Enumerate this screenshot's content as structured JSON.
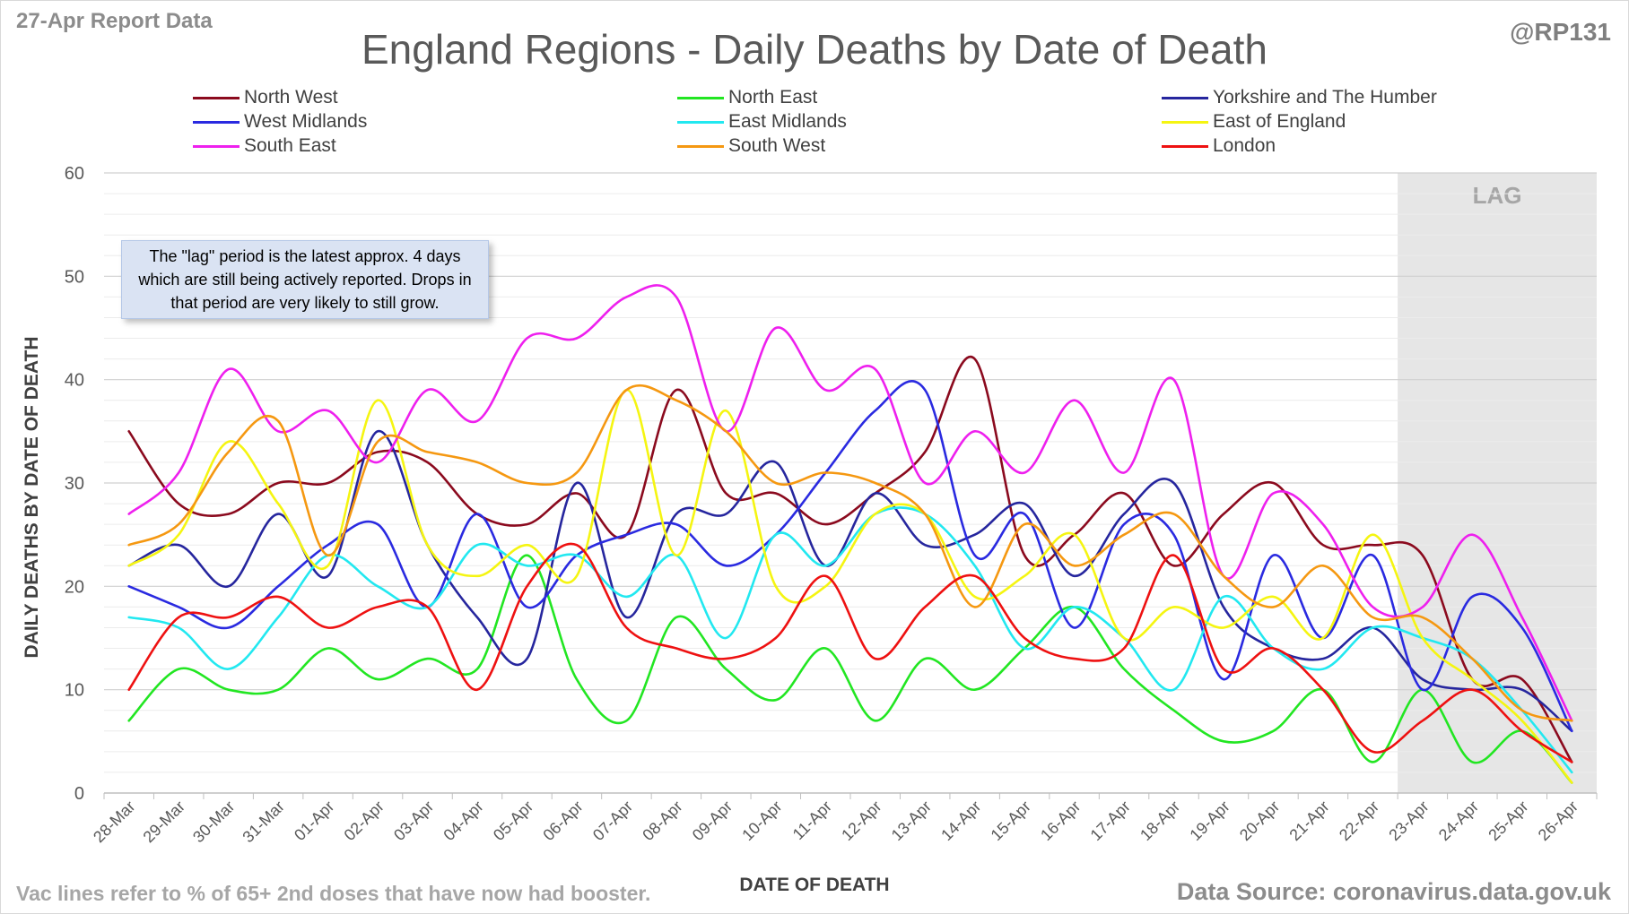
{
  "header": {
    "report_date": "27-Apr Report Data",
    "handle": "@RP131",
    "title": "England Regions - Daily Deaths by Date of Death"
  },
  "annotation": "The \"lag\" period is the latest approx. 4 days which are still being actively reported. Drops in that period are very likely to still grow.",
  "lag_label": "LAG",
  "footer": {
    "note": "Vac lines refer to % of 65+ 2nd doses that have now had booster.",
    "source": "Data Source: coronavirus.data.gov.uk"
  },
  "chart_data": {
    "type": "line",
    "title": "England Regions - Daily Deaths by Date of Death",
    "xlabel": "DATE OF DEATH",
    "ylabel": "DAILY DEATHS BY DATE OF DEATH",
    "ylim": [
      0,
      60
    ],
    "yticks": [
      0,
      10,
      20,
      30,
      40,
      50,
      60
    ],
    "grid": true,
    "legend_position": "top",
    "lag_period": [
      "23-Apr",
      "26-Apr"
    ],
    "categories": [
      "28-Mar",
      "29-Mar",
      "30-Mar",
      "31-Mar",
      "01-Apr",
      "02-Apr",
      "03-Apr",
      "04-Apr",
      "05-Apr",
      "06-Apr",
      "07-Apr",
      "08-Apr",
      "09-Apr",
      "10-Apr",
      "11-Apr",
      "12-Apr",
      "13-Apr",
      "14-Apr",
      "15-Apr",
      "16-Apr",
      "17-Apr",
      "18-Apr",
      "19-Apr",
      "20-Apr",
      "21-Apr",
      "22-Apr",
      "23-Apr",
      "24-Apr",
      "25-Apr",
      "26-Apr"
    ],
    "series": [
      {
        "name": "North West",
        "color": "#8b0a1e",
        "values": [
          35,
          28,
          27,
          30,
          30,
          33,
          32,
          27,
          26,
          29,
          25,
          39,
          29,
          29,
          26,
          29,
          33,
          42,
          23,
          25,
          29,
          22,
          27,
          30,
          24,
          24,
          23,
          11,
          11,
          3
        ]
      },
      {
        "name": "North East",
        "color": "#22e622",
        "values": [
          7,
          12,
          10,
          10,
          14,
          11,
          13,
          12,
          23,
          11,
          7,
          17,
          12,
          9,
          14,
          7,
          13,
          10,
          14,
          18,
          12,
          8,
          5,
          6,
          10,
          3,
          10,
          3,
          6,
          1
        ]
      },
      {
        "name": "Yorkshire and The Humber",
        "color": "#26269e",
        "values": [
          22,
          24,
          20,
          27,
          21,
          35,
          24,
          17,
          13,
          30,
          17,
          27,
          27,
          32,
          22,
          29,
          24,
          25,
          28,
          21,
          27,
          30,
          18,
          14,
          13,
          16,
          11,
          10,
          10,
          6
        ]
      },
      {
        "name": "West Midlands",
        "color": "#2a2ae0",
        "values": [
          20,
          18,
          16,
          20,
          24,
          26,
          18,
          27,
          18,
          23,
          25,
          26,
          22,
          25,
          31,
          37,
          39,
          23,
          27,
          16,
          26,
          25,
          11,
          23,
          15,
          23,
          10,
          19,
          16,
          6
        ]
      },
      {
        "name": "East Midlands",
        "color": "#22e8f0",
        "values": [
          17,
          16,
          12,
          17,
          23,
          20,
          18,
          24,
          22,
          23,
          19,
          23,
          15,
          25,
          22,
          27,
          27,
          22,
          14,
          18,
          15,
          10,
          19,
          14,
          12,
          16,
          15,
          13,
          8,
          2
        ]
      },
      {
        "name": "East of England",
        "color": "#f5f511",
        "values": [
          22,
          25,
          34,
          28,
          22,
          38,
          24,
          21,
          24,
          21,
          39,
          23,
          37,
          20,
          20,
          27,
          27,
          19,
          21,
          25,
          15,
          18,
          16,
          19,
          15,
          25,
          15,
          11,
          7,
          1
        ]
      },
      {
        "name": "South East",
        "color": "#ee20ee",
        "values": [
          27,
          31,
          41,
          35,
          37,
          32,
          39,
          36,
          44,
          44,
          48,
          48,
          35,
          45,
          39,
          41,
          30,
          35,
          31,
          38,
          31,
          40,
          21,
          29,
          26,
          18,
          18,
          25,
          17,
          7
        ]
      },
      {
        "name": "South West",
        "color": "#f59811",
        "values": [
          24,
          26,
          33,
          36,
          23,
          34,
          33,
          32,
          30,
          31,
          39,
          38,
          35,
          30,
          31,
          30,
          27,
          18,
          26,
          22,
          25,
          27,
          21,
          18,
          22,
          17,
          17,
          13,
          8,
          7
        ]
      },
      {
        "name": "London",
        "color": "#ee1111",
        "values": [
          10,
          17,
          17,
          19,
          16,
          18,
          18,
          10,
          20,
          24,
          16,
          14,
          13,
          15,
          21,
          13,
          18,
          21,
          15,
          13,
          14,
          23,
          12,
          14,
          10,
          4,
          7,
          10,
          6,
          3
        ]
      }
    ]
  }
}
